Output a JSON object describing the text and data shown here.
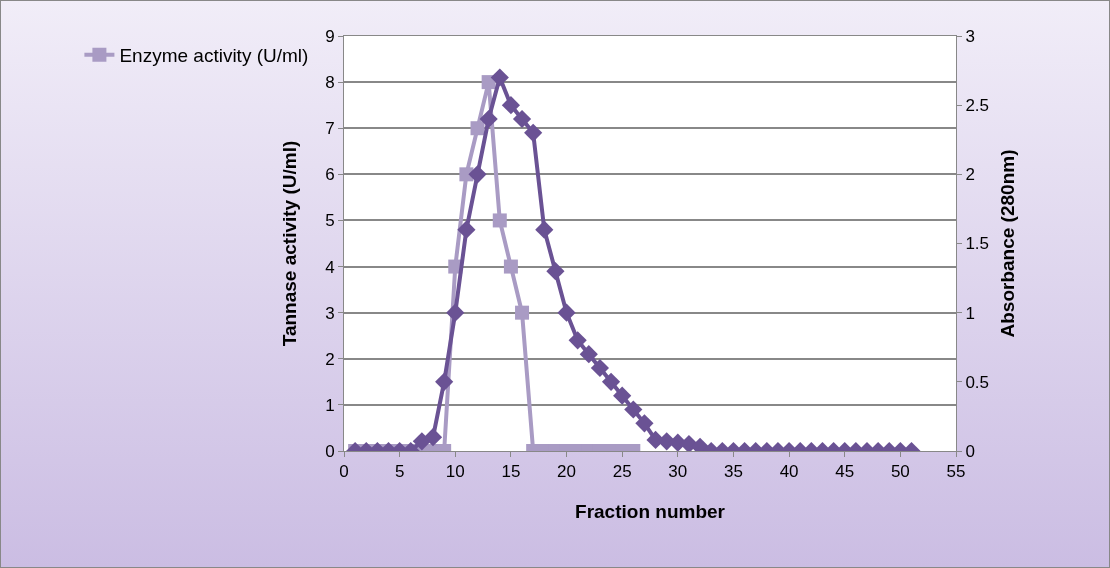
{
  "chart_data": {
    "type": "line",
    "xlabel": "Fraction number",
    "ylabel": "Tannase activity (U/ml)",
    "y2label": "Absorbance (280nm)",
    "xlim": [
      0,
      55
    ],
    "xticks": [
      0,
      5,
      10,
      15,
      20,
      25,
      30,
      35,
      40,
      45,
      50,
      55
    ],
    "ylim": [
      0,
      9
    ],
    "yticks": [
      0,
      1,
      2,
      3,
      4,
      5,
      6,
      7,
      8,
      9
    ],
    "y2lim": [
      0,
      3
    ],
    "y2ticks": [
      0,
      0.5,
      1,
      1.5,
      2,
      2.5,
      3
    ],
    "grid": "y",
    "legend": "top left",
    "line_style": "solid",
    "series": [
      {
        "name": "Enzyme activity (U/ml)",
        "color": "#a99bc4",
        "marker": "square",
        "x": [
          1,
          2,
          3,
          4,
          5,
          6,
          7,
          8,
          9,
          10,
          11,
          12,
          13,
          14,
          15,
          16,
          17,
          18,
          19,
          20,
          21,
          22,
          23,
          24,
          25,
          26
        ],
        "values": [
          0,
          0,
          0,
          0,
          0,
          0,
          0,
          0,
          0,
          4,
          6,
          7,
          8,
          5,
          4,
          3,
          0,
          0,
          0,
          0,
          0,
          0,
          0,
          0,
          0,
          0
        ]
      },
      {
        "color": "#6a5294",
        "marker": "diamond",
        "axis": "y2",
        "x": [
          1,
          2,
          3,
          4,
          5,
          6,
          7,
          8,
          9,
          10,
          11,
          12,
          13,
          14,
          15,
          16,
          17,
          18,
          19,
          20,
          21,
          22,
          23,
          24,
          25,
          26,
          27,
          28,
          29,
          30,
          31,
          32,
          33,
          34,
          35,
          36,
          37,
          38,
          39,
          40,
          41,
          42,
          43,
          44,
          45,
          46,
          47,
          48,
          49,
          50,
          51
        ],
        "values": [
          0,
          0,
          0,
          0,
          0,
          0,
          0.07,
          0.1,
          0.5,
          1.0,
          1.6,
          2.0,
          2.4,
          2.7,
          2.5,
          2.4,
          2.3,
          1.6,
          1.3,
          1.0,
          0.8,
          0.7,
          0.6,
          0.5,
          0.4,
          0.3,
          0.2,
          0.08,
          0.07,
          0.06,
          0.05,
          0.03,
          0,
          0,
          0,
          0,
          0,
          0,
          0,
          0,
          0,
          0,
          0,
          0,
          0,
          0,
          0,
          0,
          0,
          0,
          0
        ]
      }
    ]
  }
}
